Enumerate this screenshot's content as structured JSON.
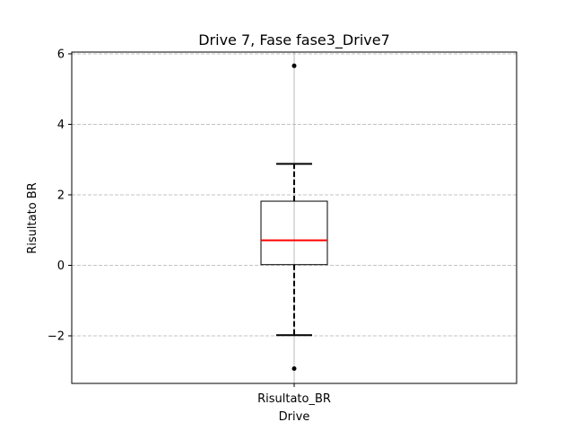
{
  "chart_data": {
    "type": "box",
    "title": "Drive 7, Fase fase3_Drive7",
    "xlabel": "Drive",
    "ylabel": "Risultato BR",
    "categories": [
      "Risultato_BR"
    ],
    "ylim": [
      -3.35,
      6.05
    ],
    "yticks": [
      {
        "value": -2,
        "label": "−2"
      },
      {
        "value": 0,
        "label": "0"
      },
      {
        "value": 2,
        "label": "2"
      },
      {
        "value": 4,
        "label": "4"
      },
      {
        "value": 6,
        "label": "6"
      }
    ],
    "grid": "y-dashed",
    "boxes": [
      {
        "category": "Risultato_BR",
        "whisker_low": -1.98,
        "q1": 0.02,
        "median": 0.71,
        "q3": 1.82,
        "whisker_high": 2.88,
        "outliers": [
          5.66,
          -2.93
        ]
      }
    ],
    "colors": {
      "box": "#000000",
      "median": "#ff0000",
      "grid": "#b0b0b0",
      "center_line": "#aaaaaa",
      "outlier": "#000000"
    }
  }
}
